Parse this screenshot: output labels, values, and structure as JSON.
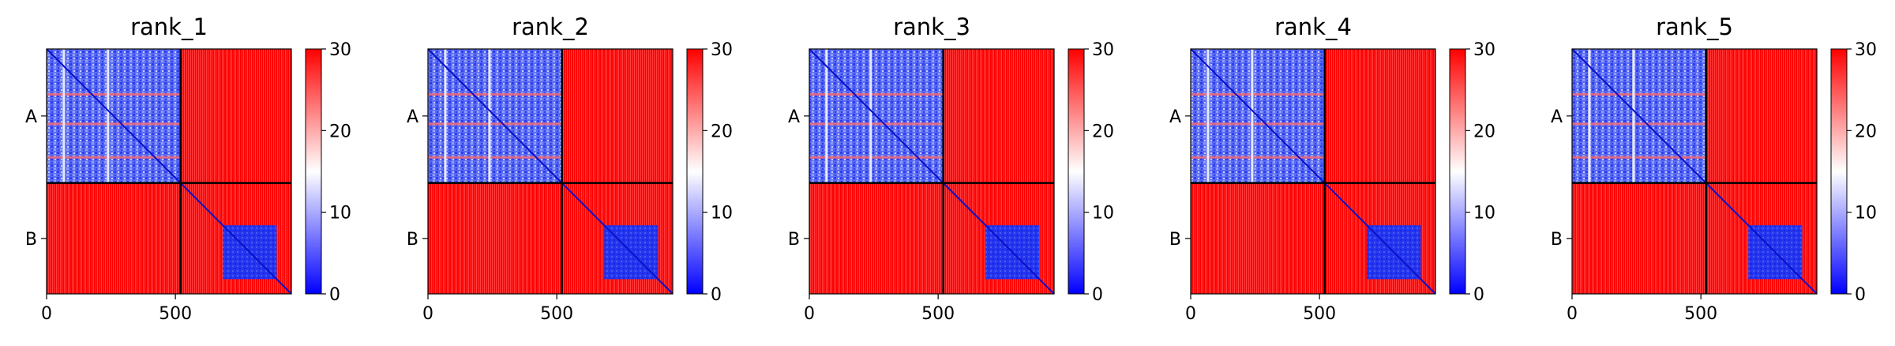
{
  "chart_data": [
    {
      "type": "heatmap",
      "title": "rank_1",
      "chains": [
        "A",
        "B"
      ],
      "x_ticks": [
        0,
        500
      ],
      "chain_boundary": 520,
      "sequence_length": 950,
      "colorbar": {
        "ticks": [
          0,
          10,
          20,
          30
        ],
        "range": [
          0,
          30
        ],
        "colors": [
          "#0000ff",
          "#ffffff",
          "#ff0000"
        ]
      }
    },
    {
      "type": "heatmap",
      "title": "rank_2",
      "chains": [
        "A",
        "B"
      ],
      "x_ticks": [
        0,
        500
      ],
      "chain_boundary": 520,
      "sequence_length": 950,
      "colorbar": {
        "ticks": [
          0,
          10,
          20,
          30
        ],
        "range": [
          0,
          30
        ],
        "colors": [
          "#0000ff",
          "#ffffff",
          "#ff0000"
        ]
      }
    },
    {
      "type": "heatmap",
      "title": "rank_3",
      "chains": [
        "A",
        "B"
      ],
      "x_ticks": [
        0,
        500
      ],
      "chain_boundary": 520,
      "sequence_length": 950,
      "colorbar": {
        "ticks": [
          0,
          10,
          20,
          30
        ],
        "range": [
          0,
          30
        ],
        "colors": [
          "#0000ff",
          "#ffffff",
          "#ff0000"
        ]
      }
    },
    {
      "type": "heatmap",
      "title": "rank_4",
      "chains": [
        "A",
        "B"
      ],
      "x_ticks": [
        0,
        500
      ],
      "chain_boundary": 520,
      "sequence_length": 950,
      "colorbar": {
        "ticks": [
          0,
          10,
          20,
          30
        ],
        "range": [
          0,
          30
        ],
        "colors": [
          "#0000ff",
          "#ffffff",
          "#ff0000"
        ]
      }
    },
    {
      "type": "heatmap",
      "title": "rank_5",
      "chains": [
        "A",
        "B"
      ],
      "x_ticks": [
        0,
        500
      ],
      "chain_boundary": 520,
      "sequence_length": 950,
      "colorbar": {
        "ticks": [
          0,
          10,
          20,
          30
        ],
        "range": [
          0,
          30
        ],
        "colors": [
          "#0000ff",
          "#ffffff",
          "#ff0000"
        ]
      }
    }
  ]
}
